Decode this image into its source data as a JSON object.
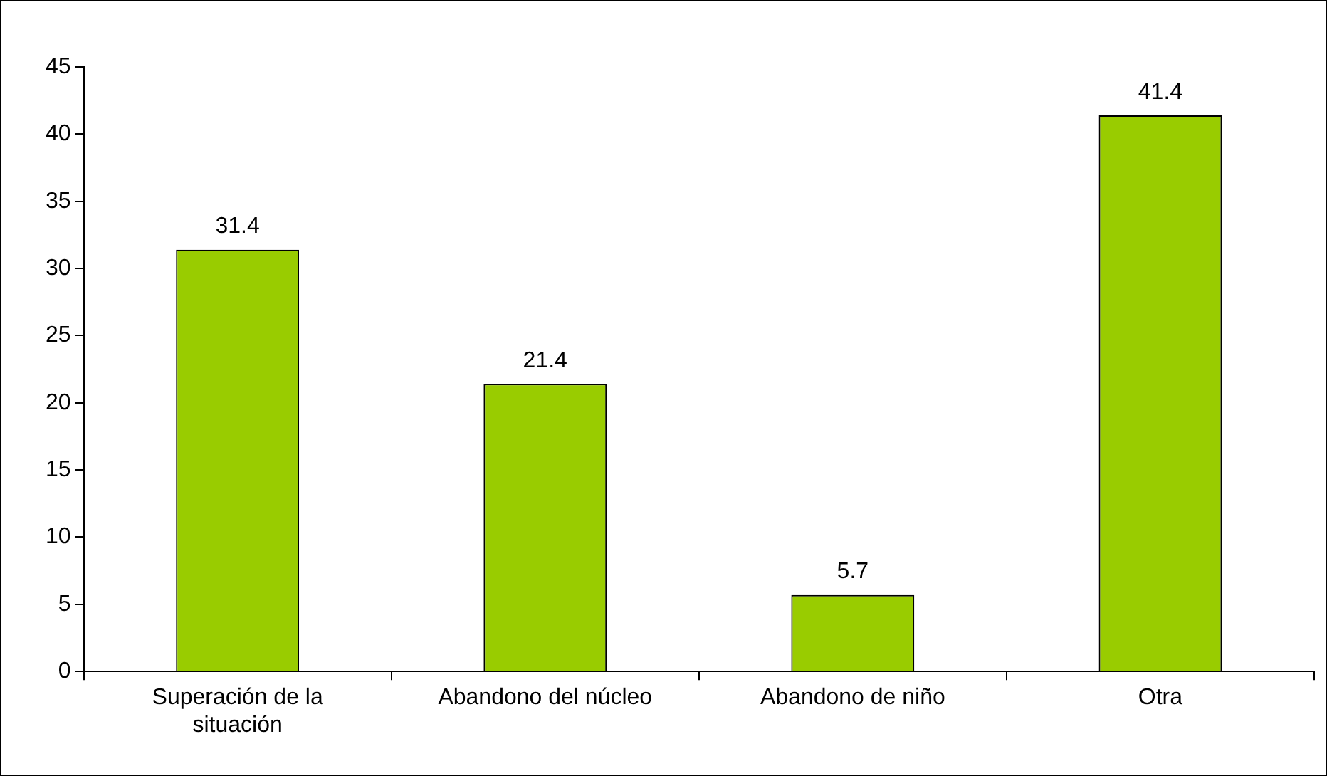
{
  "chart_data": {
    "type": "bar",
    "categories": [
      "Superación de la situación",
      "Abandono del núcleo",
      "Abandono de niño",
      "Otra"
    ],
    "values": [
      31.4,
      21.4,
      5.7,
      41.4
    ],
    "color": "#99cc00",
    "ylim": [
      0,
      45
    ],
    "yticks": [
      0,
      5,
      10,
      15,
      20,
      25,
      30,
      35,
      40,
      45
    ],
    "data_labels": true
  }
}
